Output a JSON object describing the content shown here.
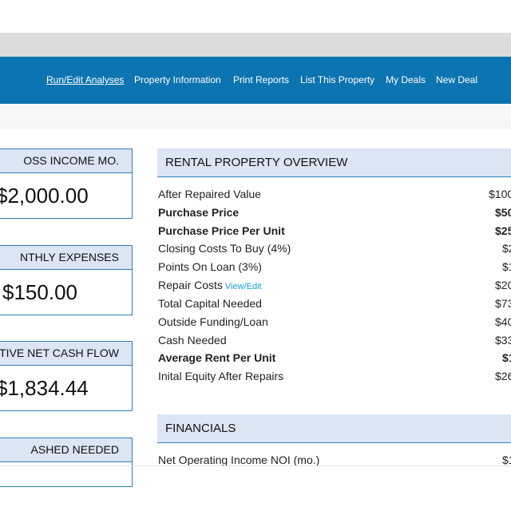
{
  "nav": {
    "items": [
      {
        "label": "Run/Edit Analyses",
        "active": true
      },
      {
        "label": "Property Information",
        "active": false
      },
      {
        "label": "Print Reports",
        "active": false
      },
      {
        "label": "List This Property",
        "active": false
      },
      {
        "label": "My Deals",
        "active": false
      },
      {
        "label": "New Deal",
        "active": false
      }
    ]
  },
  "cards": [
    {
      "title": "OSS INCOME MO.",
      "value": "$2,000.00"
    },
    {
      "title": "NTHLY EXPENSES",
      "value": "$150.00"
    },
    {
      "title": "TIVE NET CASH FLOW",
      "value": "$1,834.44"
    },
    {
      "title": "ASHED NEEDED",
      "value": ""
    }
  ],
  "overview": {
    "title": "RENTAL PROPERTY OVERVIEW",
    "rows": [
      {
        "label": "After Repaired Value",
        "value": "$100",
        "bold": false
      },
      {
        "label": "Purchase Price",
        "value": "$50",
        "bold": true
      },
      {
        "label": "Purchase Price Per Unit",
        "value": "$25",
        "bold": true
      },
      {
        "label": "Closing Costs To Buy (4%)",
        "value": "$2",
        "bold": false
      },
      {
        "label": "Points On Loan (3%)",
        "value": "$1",
        "bold": false
      },
      {
        "label": "Repair Costs",
        "link": "View/Edit",
        "value": "$20",
        "bold": false
      },
      {
        "label": "Total Capital Needed",
        "value": "$73",
        "bold": false
      },
      {
        "label": "Outside Funding/Loan",
        "value": "$40",
        "bold": false
      },
      {
        "label": "Cash Needed",
        "value": "$33",
        "bold": false
      },
      {
        "label": "Average Rent Per Unit",
        "value": "$1",
        "bold": true
      },
      {
        "label": "Inital Equity After Repairs",
        "value": "$26",
        "bold": false
      }
    ]
  },
  "financials": {
    "title": "FINANCIALS",
    "rows": [
      {
        "label": "Net Operating Income NOI (mo.)",
        "value": "$1"
      }
    ]
  }
}
